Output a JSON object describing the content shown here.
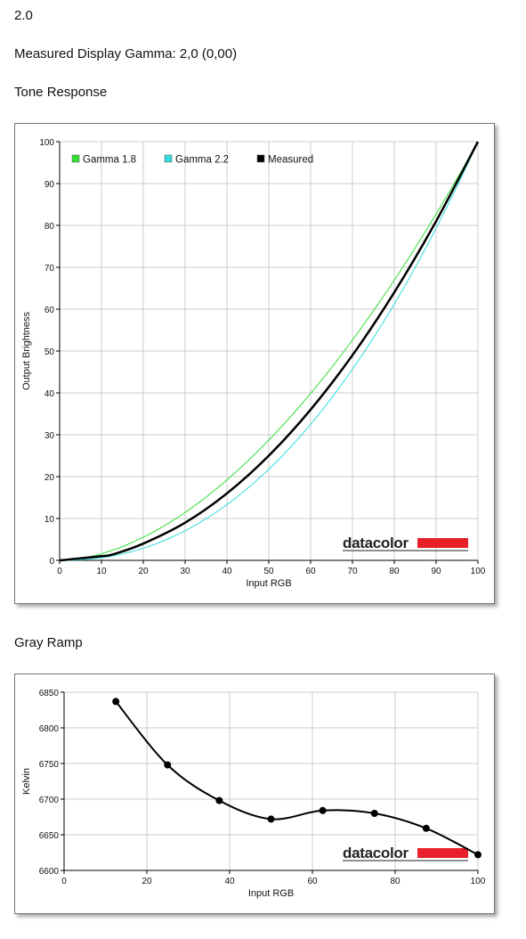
{
  "header": {
    "version": "2.0",
    "measured_gamma": "Measured Display Gamma: 2,0 (0,00)",
    "tone_heading": "Tone Response",
    "gray_heading": "Gray Ramp"
  },
  "brand": {
    "logo_text": "datacolor",
    "accent": "#e8202a"
  },
  "colors": {
    "gamma18": "#33dd33",
    "gamma22": "#33dddd",
    "measured": "#000000",
    "grid": "#cccccc"
  },
  "chart_data": [
    {
      "type": "line",
      "xlabel": "Input RGB",
      "ylabel": "Output Brightness",
      "xlim": [
        0,
        100
      ],
      "ylim": [
        0,
        100
      ],
      "xticks": [
        0,
        10,
        20,
        30,
        40,
        50,
        60,
        70,
        80,
        90,
        100
      ],
      "yticks": [
        0,
        10,
        20,
        30,
        40,
        50,
        60,
        70,
        80,
        90,
        100
      ],
      "grid": true,
      "legend_position": "top-left",
      "series": [
        {
          "name": "Gamma 1.8",
          "color": "#33dd33",
          "gamma": 1.8,
          "width": 1,
          "x": [
            0,
            10,
            20,
            30,
            40,
            50,
            60,
            70,
            80,
            90,
            100
          ],
          "y": [
            0,
            1.6,
            5.5,
            11.5,
            19.2,
            28.7,
            39.9,
            52.6,
            66.9,
            82.7,
            100
          ]
        },
        {
          "name": "Gamma 2.2",
          "color": "#33dddd",
          "gamma": 2.2,
          "width": 1,
          "x": [
            0,
            10,
            20,
            30,
            40,
            50,
            60,
            70,
            80,
            90,
            100
          ],
          "y": [
            0,
            0.6,
            2.9,
            7.1,
            13.3,
            21.8,
            32.5,
            45.6,
            61.2,
            79.3,
            100
          ]
        },
        {
          "name": "Measured",
          "color": "#000000",
          "width": 2.5,
          "x": [
            0,
            10,
            13,
            20,
            30,
            40,
            50,
            60,
            70,
            80,
            90,
            100
          ],
          "y": [
            0,
            1,
            1.5,
            4,
            9,
            16,
            25,
            36,
            49,
            64,
            81,
            100
          ]
        }
      ]
    },
    {
      "type": "line",
      "xlabel": "Input RGB",
      "ylabel": "Kelvin",
      "xlim": [
        0,
        100
      ],
      "ylim": [
        6600,
        6850
      ],
      "xticks": [
        0,
        20,
        40,
        60,
        80,
        100
      ],
      "yticks": [
        6600,
        6650,
        6700,
        6750,
        6800,
        6850
      ],
      "grid": true,
      "series": [
        {
          "color": "#000000",
          "x": [
            12.5,
            25,
            37.5,
            50,
            62.5,
            75,
            87.5,
            100
          ],
          "y": [
            6837,
            6748,
            6698,
            6672,
            6684,
            6680,
            6659,
            6622
          ]
        }
      ]
    }
  ]
}
